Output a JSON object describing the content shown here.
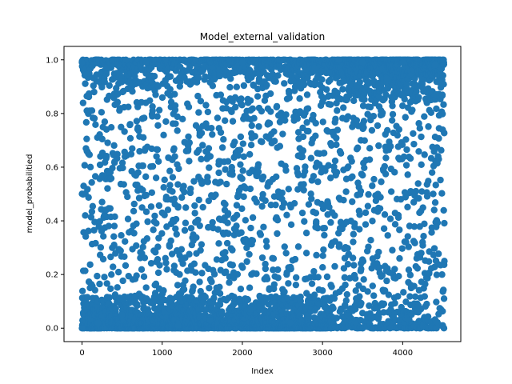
{
  "chart_data": {
    "type": "scatter",
    "title": "Model_external_validation",
    "xlabel": "Index",
    "ylabel": "model_probabilitied",
    "xlim": [
      -225,
      4725
    ],
    "ylim": [
      -0.05,
      1.05
    ],
    "xticks": [
      0,
      1000,
      2000,
      3000,
      4000
    ],
    "xtick_labels": [
      "0",
      "1000",
      "2000",
      "3000",
      "4000"
    ],
    "yticks": [
      0.0,
      0.2,
      0.4,
      0.6,
      0.8,
      1.0
    ],
    "ytick_labels": [
      "0.0",
      "0.2",
      "0.4",
      "0.6",
      "0.8",
      "1.0"
    ],
    "grid": false,
    "legend": "none",
    "n_points": 4520,
    "point_color": "#1f77b4",
    "series": [
      {
        "x_range": [
          0,
          4520
        ],
        "distribution_note_values": {
          "y_min": 0.0,
          "y_max": 1.0
        }
      }
    ],
    "sample_points": [
      {
        "x": 0,
        "y": 0.99
      },
      {
        "x": 0,
        "y": 0.0
      },
      {
        "x": 20,
        "y": 0.53
      },
      {
        "x": 40,
        "y": 0.42
      },
      {
        "x": 60,
        "y": 0.81
      },
      {
        "x": 80,
        "y": 0.65
      },
      {
        "x": 100,
        "y": 0.15
      },
      {
        "x": 150,
        "y": 0.88
      },
      {
        "x": 200,
        "y": 0.02
      },
      {
        "x": 250,
        "y": 0.47
      },
      {
        "x": 300,
        "y": 0.97
      },
      {
        "x": 400,
        "y": 0.31
      },
      {
        "x": 500,
        "y": 0.05
      },
      {
        "x": 600,
        "y": 0.76
      },
      {
        "x": 700,
        "y": 0.58
      },
      {
        "x": 800,
        "y": 0.99
      },
      {
        "x": 900,
        "y": 0.11
      },
      {
        "x": 1000,
        "y": 0.43
      },
      {
        "x": 1100,
        "y": 0.89
      },
      {
        "x": 1200,
        "y": 0.01
      },
      {
        "x": 1300,
        "y": 0.66
      },
      {
        "x": 1400,
        "y": 0.24
      },
      {
        "x": 1500,
        "y": 0.96
      },
      {
        "x": 1600,
        "y": 0.03
      },
      {
        "x": 1700,
        "y": 0.54
      },
      {
        "x": 1800,
        "y": 0.82
      },
      {
        "x": 1900,
        "y": 0.37
      },
      {
        "x": 2000,
        "y": 0.99
      },
      {
        "x": 2100,
        "y": 0.07
      },
      {
        "x": 2200,
        "y": 0.61
      },
      {
        "x": 2300,
        "y": 0.19
      },
      {
        "x": 2400,
        "y": 0.92
      },
      {
        "x": 2500,
        "y": 0.45
      },
      {
        "x": 2600,
        "y": 0.02
      },
      {
        "x": 2700,
        "y": 0.73
      },
      {
        "x": 2800,
        "y": 0.28
      },
      {
        "x": 2900,
        "y": 0.97
      },
      {
        "x": 3000,
        "y": 0.14
      },
      {
        "x": 3100,
        "y": 0.56
      },
      {
        "x": 3200,
        "y": 1.0
      },
      {
        "x": 3300,
        "y": 0.85
      },
      {
        "x": 3400,
        "y": 0.39
      },
      {
        "x": 3500,
        "y": 0.99
      },
      {
        "x": 3600,
        "y": 0.04
      },
      {
        "x": 3700,
        "y": 0.68
      },
      {
        "x": 3800,
        "y": 0.93
      },
      {
        "x": 3900,
        "y": 0.22
      },
      {
        "x": 4000,
        "y": 0.99
      },
      {
        "x": 4100,
        "y": 0.51
      },
      {
        "x": 4200,
        "y": 0.86
      },
      {
        "x": 4300,
        "y": 0.09
      },
      {
        "x": 4400,
        "y": 0.98
      },
      {
        "x": 4450,
        "y": 0.63
      },
      {
        "x": 4500,
        "y": 0.01
      },
      {
        "x": 4510,
        "y": 1.0
      },
      {
        "x": 4520,
        "y": 0.25
      }
    ]
  }
}
